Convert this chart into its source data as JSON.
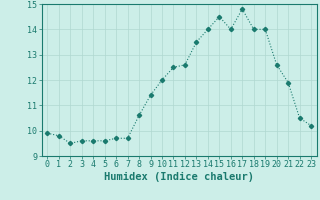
{
  "xlabel": "Humidex (Indice chaleur)",
  "x": [
    0,
    1,
    2,
    3,
    4,
    5,
    6,
    7,
    8,
    9,
    10,
    11,
    12,
    13,
    14,
    15,
    16,
    17,
    18,
    19,
    20,
    21,
    22,
    23
  ],
  "y": [
    9.9,
    9.8,
    9.5,
    9.6,
    9.6,
    9.6,
    9.7,
    9.7,
    10.6,
    11.4,
    12.0,
    12.5,
    12.6,
    13.5,
    14.0,
    14.5,
    14.0,
    14.8,
    14.0,
    14.0,
    12.6,
    11.9,
    10.5,
    10.2
  ],
  "line_color": "#1a7a6e",
  "marker": "D",
  "marker_size": 2.2,
  "line_width": 0.8,
  "bg_color": "#cceee8",
  "grid_color": "#b0d8d0",
  "ylim": [
    9,
    15
  ],
  "xlim": [
    -0.5,
    23.5
  ],
  "yticks": [
    9,
    10,
    11,
    12,
    13,
    14,
    15
  ],
  "xticks": [
    0,
    1,
    2,
    3,
    4,
    5,
    6,
    7,
    8,
    9,
    10,
    11,
    12,
    13,
    14,
    15,
    16,
    17,
    18,
    19,
    20,
    21,
    22,
    23
  ],
  "tick_fontsize": 6.0,
  "xlabel_fontsize": 7.5,
  "tick_color": "#1a7a6e",
  "axis_color": "#1a7a6e",
  "grid_linewidth": 0.5,
  "spine_linewidth": 0.8
}
